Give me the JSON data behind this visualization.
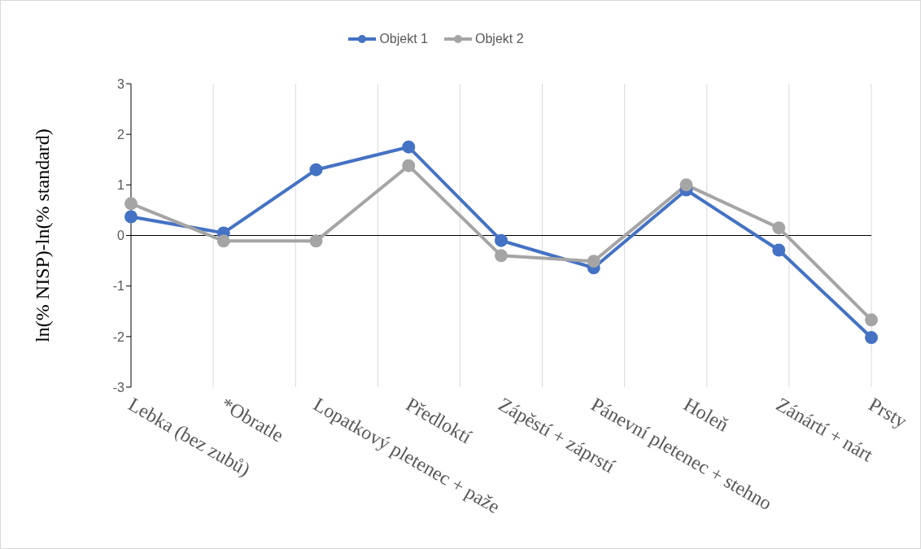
{
  "chart_data": {
    "type": "line",
    "ylabel": "ln(% NISP)-ln(% standard)",
    "categories": [
      "Lebka (bez zubů)",
      "*Obratle",
      "Lopatkový pletenec + paže",
      "Předloktí",
      "Zápěstí + záprstí",
      "Pánevní pletenec + stehno",
      "Holeň",
      "Zánártí + nárt",
      "Prsty"
    ],
    "series": [
      {
        "name": "Objekt 1",
        "color": "#4472c4",
        "values": [
          0.37,
          0.05,
          1.3,
          1.75,
          -0.1,
          -0.64,
          0.9,
          -0.29,
          -2.02
        ]
      },
      {
        "name": "Objekt 2",
        "color": "#a5a5a5",
        "values": [
          0.63,
          -0.11,
          -0.11,
          1.38,
          -0.4,
          -0.51,
          1.0,
          0.15,
          -1.67
        ]
      }
    ],
    "ylim": [
      -3,
      3
    ],
    "yticks": [
      -3,
      -2,
      -1,
      0,
      1,
      2,
      3
    ],
    "grid": "x",
    "legend": "top",
    "marker": "circle",
    "line_style": "solid"
  }
}
